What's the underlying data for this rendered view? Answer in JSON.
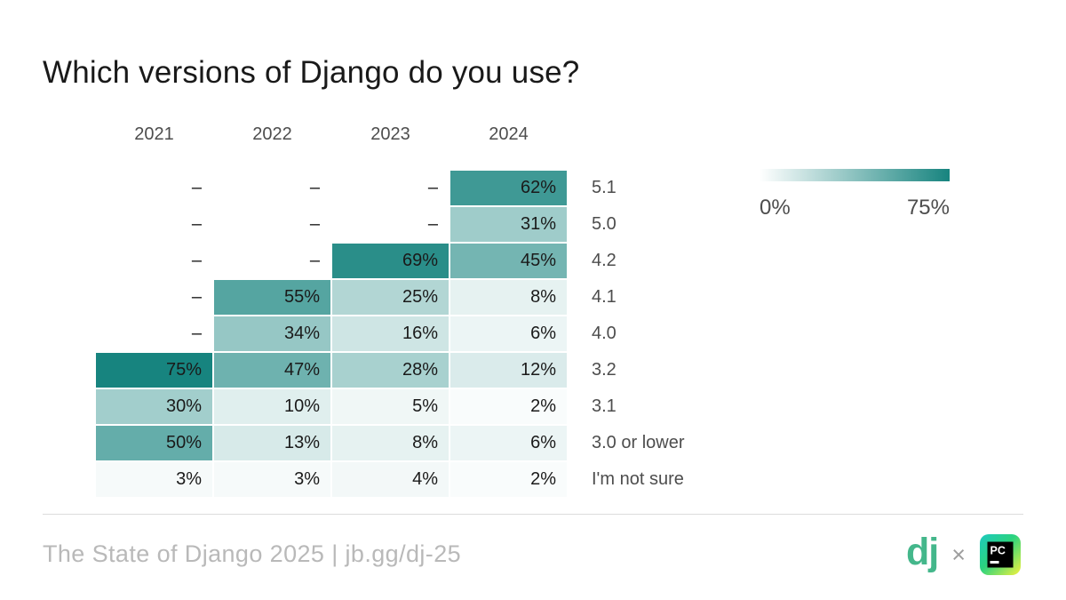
{
  "title": "Which versions of Django do you use?",
  "colors": {
    "scale_min": "#FFFFFF",
    "scale_max": "#17847F",
    "title_text": "#191919",
    "label_text": "#4D4D4D",
    "cell_text": "#1A1A1A",
    "footer_text": "#B9B9B9",
    "divider": "#DCDCDC",
    "django_green": "#44B78B",
    "cross_gray": "#9E9E9E"
  },
  "chart_data": {
    "type": "heatmap",
    "title": "Which versions of Django do you use?",
    "columns": [
      "2021",
      "2022",
      "2023",
      "2024"
    ],
    "rows": [
      "5.1",
      "5.0",
      "4.2",
      "4.1",
      "4.0",
      "3.2",
      "3.1",
      "3.0 or lower",
      "I'm not sure"
    ],
    "values": [
      [
        null,
        null,
        null,
        62
      ],
      [
        null,
        null,
        null,
        31
      ],
      [
        null,
        null,
        69,
        45
      ],
      [
        null,
        55,
        25,
        8
      ],
      [
        null,
        34,
        16,
        6
      ],
      [
        75,
        47,
        28,
        12
      ],
      [
        30,
        10,
        5,
        2
      ],
      [
        50,
        13,
        8,
        6
      ],
      [
        3,
        3,
        4,
        2
      ]
    ],
    "value_suffix": "%",
    "missing_marker": "–",
    "scale": {
      "min": 0,
      "max": 75,
      "min_label": "0%",
      "max_label": "75%"
    },
    "legend_position": "top-right",
    "grid": "off"
  },
  "footer": {
    "text": "The State of Django 2025 | jb.gg/dj-25",
    "django_logo_text": "dj",
    "separator": "×",
    "pycharm_abbr": "PC"
  }
}
